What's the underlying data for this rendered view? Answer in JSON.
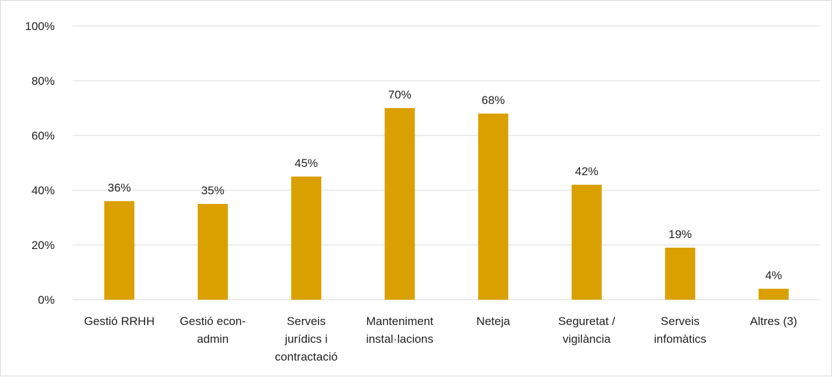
{
  "chart_data": {
    "type": "bar",
    "categories": [
      [
        "Gestió RRHH"
      ],
      [
        "Gestió econ-",
        "admin"
      ],
      [
        "Serveis",
        "jurídics i",
        "contractació"
      ],
      [
        "Manteniment",
        "instal·lacions"
      ],
      [
        "Neteja"
      ],
      [
        "Seguretat /",
        "vigilància"
      ],
      [
        "Serveis",
        "infomàtics"
      ],
      [
        "Altres (3)"
      ]
    ],
    "values": [
      36,
      35,
      45,
      70,
      68,
      42,
      19,
      4
    ],
    "data_labels": [
      "36%",
      "35%",
      "45%",
      "70%",
      "68%",
      "42%",
      "19%",
      "4%"
    ],
    "ylim": [
      0,
      100
    ],
    "yticks": [
      0,
      20,
      40,
      60,
      80,
      100
    ],
    "ytick_labels": [
      "0%",
      "20%",
      "40%",
      "60%",
      "80%",
      "100%"
    ],
    "grid": true,
    "legend": "none",
    "bar_color": "#DAA000",
    "grid_color": "#d9d9d9"
  }
}
